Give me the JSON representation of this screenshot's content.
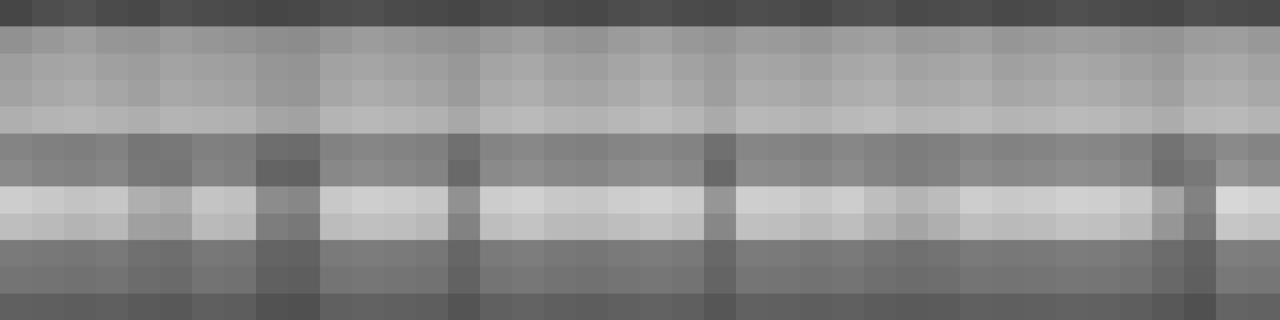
{
  "chart_data": {
    "type": "heatmap",
    "tick_labels": false,
    "grid": false,
    "zlim": [
      0,
      255
    ],
    "cells": [
      [
        70,
        78,
        82,
        75,
        72,
        80,
        76,
        74,
        70,
        72,
        78,
        80,
        75,
        73,
        70,
        76,
        79,
        74,
        72,
        77,
        80,
        75,
        73,
        78,
        76,
        72,
        79,
        81,
        74,
        76,
        78,
        73,
        75,
        80,
        77,
        74,
        72,
        79,
        76,
        74
      ],
      [
        145,
        152,
        158,
        150,
        148,
        155,
        150,
        147,
        142,
        140,
        150,
        156,
        152,
        148,
        145,
        153,
        158,
        150,
        147,
        155,
        160,
        152,
        148,
        156,
        154,
        150,
        157,
        160,
        152,
        154,
        158,
        150,
        153,
        157,
        155,
        150,
        148,
        156,
        158,
        152
      ],
      [
        158,
        164,
        166,
        160,
        157,
        163,
        160,
        158,
        150,
        148,
        162,
        165,
        161,
        158,
        152,
        164,
        168,
        160,
        158,
        165,
        170,
        162,
        156,
        166,
        164,
        160,
        167,
        170,
        162,
        165,
        168,
        160,
        163,
        168,
        165,
        160,
        155,
        166,
        168,
        162
      ],
      [
        162,
        168,
        172,
        166,
        160,
        168,
        165,
        162,
        152,
        150,
        166,
        172,
        168,
        163,
        155,
        170,
        174,
        166,
        164,
        170,
        176,
        168,
        158,
        172,
        170,
        166,
        173,
        176,
        168,
        170,
        174,
        166,
        169,
        174,
        171,
        166,
        160,
        172,
        174,
        168
      ],
      [
        175,
        180,
        182,
        178,
        174,
        180,
        178,
        176,
        165,
        162,
        180,
        184,
        181,
        177,
        168,
        182,
        186,
        180,
        178,
        183,
        187,
        181,
        170,
        184,
        182,
        179,
        185,
        188,
        181,
        183,
        186,
        180,
        182,
        186,
        184,
        179,
        172,
        183,
        185,
        180
      ],
      [
        132,
        128,
        126,
        130,
        118,
        120,
        128,
        126,
        110,
        108,
        130,
        134,
        131,
        128,
        112,
        132,
        136,
        130,
        128,
        133,
        135,
        131,
        112,
        134,
        132,
        129,
        135,
        130,
        125,
        128,
        134,
        130,
        132,
        136,
        134,
        129,
        115,
        128,
        138,
        132
      ],
      [
        138,
        132,
        130,
        134,
        120,
        118,
        132,
        128,
        100,
        98,
        136,
        140,
        136,
        132,
        105,
        138,
        142,
        136,
        134,
        140,
        142,
        137,
        105,
        140,
        138,
        134,
        140,
        132,
        126,
        130,
        140,
        136,
        138,
        142,
        140,
        134,
        112,
        120,
        148,
        140
      ],
      [
        205,
        200,
        195,
        198,
        175,
        170,
        196,
        192,
        140,
        135,
        200,
        206,
        203,
        198,
        145,
        204,
        208,
        200,
        198,
        205,
        208,
        202,
        150,
        206,
        204,
        198,
        205,
        190,
        180,
        188,
        205,
        200,
        203,
        208,
        206,
        198,
        165,
        130,
        215,
        210
      ],
      [
        190,
        186,
        180,
        184,
        160,
        158,
        186,
        182,
        125,
        120,
        188,
        192,
        190,
        184,
        130,
        190,
        195,
        186,
        185,
        190,
        194,
        188,
        135,
        192,
        190,
        184,
        190,
        176,
        165,
        175,
        190,
        186,
        188,
        194,
        192,
        184,
        150,
        120,
        198,
        194
      ],
      [
        122,
        120,
        118,
        121,
        112,
        110,
        120,
        118,
        100,
        98,
        122,
        124,
        122,
        119,
        102,
        122,
        125,
        120,
        118,
        122,
        124,
        121,
        104,
        123,
        122,
        119,
        122,
        116,
        112,
        115,
        122,
        120,
        121,
        124,
        123,
        119,
        108,
        98,
        126,
        124
      ],
      [
        116,
        115,
        113,
        115,
        108,
        106,
        115,
        113,
        96,
        94,
        116,
        118,
        116,
        114,
        98,
        116,
        119,
        115,
        113,
        116,
        118,
        115,
        100,
        117,
        116,
        114,
        116,
        111,
        108,
        110,
        116,
        115,
        116,
        118,
        117,
        114,
        104,
        95,
        120,
        118
      ],
      [
        96,
        95,
        93,
        95,
        90,
        88,
        95,
        93,
        82,
        80,
        96,
        98,
        96,
        94,
        84,
        96,
        99,
        95,
        93,
        96,
        98,
        95,
        86,
        97,
        96,
        94,
        96,
        92,
        90,
        91,
        96,
        95,
        96,
        98,
        97,
        94,
        88,
        80,
        100,
        98
      ]
    ]
  }
}
